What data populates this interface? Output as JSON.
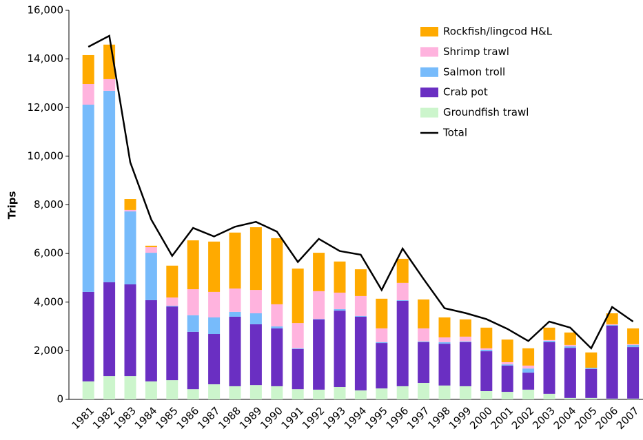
{
  "chart_data": {
    "type": "bar",
    "stacked": true,
    "y_label": "Trips",
    "categories": [
      "1981",
      "1982",
      "1983",
      "1984",
      "1985",
      "1986",
      "1987",
      "1988",
      "1989",
      "1990",
      "1991",
      "1992",
      "1993",
      "1994",
      "1995",
      "1996",
      "1997",
      "1998",
      "1999",
      "2000",
      "2001",
      "2002",
      "2003",
      "2004",
      "2005",
      "2006",
      "2007"
    ],
    "series": [
      {
        "name": "Groundfish trawl",
        "color": "#ccf5cc",
        "values": [
          740,
          960,
          960,
          740,
          790,
          420,
          620,
          540,
          590,
          540,
          420,
          400,
          510,
          370,
          450,
          540,
          680,
          570,
          540,
          340,
          310,
          400,
          230,
          60,
          60,
          30,
          30
        ]
      },
      {
        "name": "Crab pot",
        "color": "#6a2fc2",
        "values": [
          3680,
          3860,
          3770,
          3340,
          3030,
          2360,
          2070,
          2860,
          2500,
          2380,
          1650,
          2890,
          3140,
          3030,
          1870,
          3510,
          1670,
          1720,
          1810,
          1640,
          1080,
          700,
          2120,
          2060,
          1190,
          3000,
          2120
        ]
      },
      {
        "name": "Salmon troll",
        "color": "#77bbfb",
        "values": [
          7700,
          7870,
          3000,
          1950,
          30,
          680,
          680,
          200,
          450,
          80,
          30,
          20,
          60,
          30,
          30,
          30,
          30,
          60,
          30,
          60,
          50,
          170,
          60,
          60,
          50,
          30,
          90
        ]
      },
      {
        "name": "Shrimp trawl",
        "color": "#ffb3de",
        "values": [
          850,
          480,
          60,
          230,
          340,
          1070,
          1050,
          960,
          960,
          910,
          1040,
          1140,
          680,
          820,
          570,
          710,
          540,
          200,
          200,
          60,
          90,
          120,
          30,
          60,
          0,
          30,
          30
        ]
      },
      {
        "name": "Rockfish/lingcod H&L",
        "color": "#ffaa00",
        "values": [
          1190,
          1420,
          450,
          60,
          1310,
          2010,
          2070,
          2300,
          2580,
          2720,
          2240,
          1580,
          1280,
          1100,
          1220,
          990,
          1190,
          820,
          710,
          850,
          930,
          710,
          510,
          510,
          630,
          450,
          650
        ]
      },
      {
        "name": "Total",
        "type": "line",
        "color": "#000000",
        "values": [
          14500,
          14950,
          9750,
          7400,
          5900,
          7050,
          6700,
          7100,
          7300,
          6900,
          5650,
          6600,
          6100,
          5950,
          4500,
          6200,
          4950,
          3750,
          3550,
          3300,
          2900,
          2400,
          3200,
          2950,
          2100,
          3800,
          3200
        ]
      }
    ],
    "ylim": [
      0,
      16000
    ],
    "yticks": [
      0,
      {
        "value": 2000,
        "label": "2,000"
      },
      {
        "value": 4000,
        "label": "4,000"
      },
      {
        "value": 6000,
        "label": "6,000"
      },
      {
        "value": 8000,
        "label": "8,000"
      },
      {
        "value": 10000,
        "label": "10,000"
      },
      {
        "value": 12000,
        "label": "12,000"
      },
      {
        "value": 14000,
        "label": "14,000"
      },
      {
        "value": 16000,
        "label": "16,000"
      }
    ],
    "legend": "upper right"
  }
}
